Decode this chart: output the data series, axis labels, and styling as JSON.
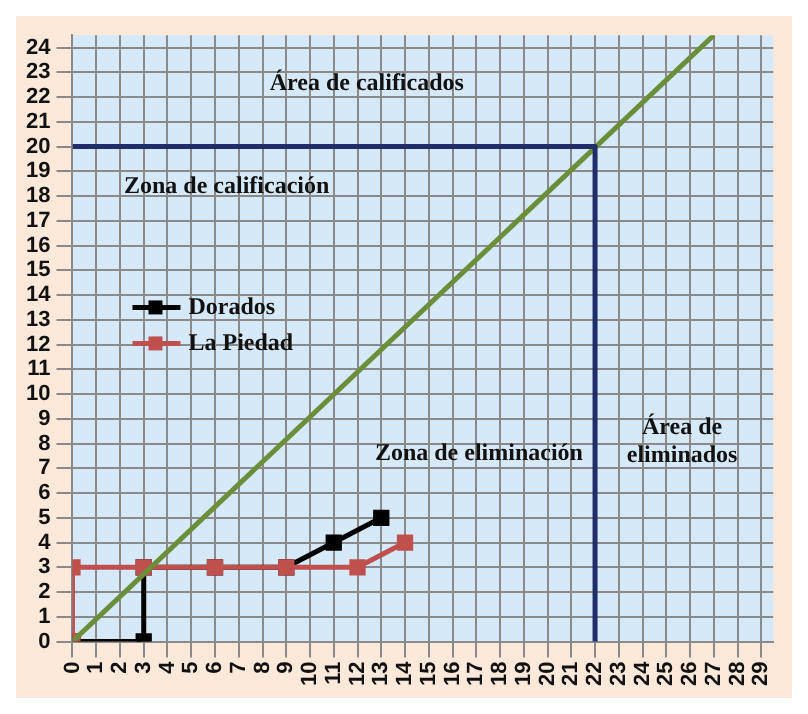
{
  "chart_data": {
    "type": "line",
    "series": [
      {
        "name": "Dorados",
        "color": "#000000",
        "marker": "square",
        "x": [
          0,
          3,
          3,
          6,
          9,
          11,
          13
        ],
        "values": [
          0,
          0,
          3,
          3,
          3,
          4,
          5
        ]
      },
      {
        "name": "La Piedad",
        "color": "#c0504d",
        "marker": "square",
        "x": [
          0,
          0,
          3,
          6,
          9,
          12,
          14
        ],
        "values": [
          0,
          3,
          3,
          3,
          3,
          3,
          4
        ]
      },
      {
        "color": "#6b8e3a",
        "marker": "none",
        "x": [
          0,
          27
        ],
        "values": [
          0,
          24.5
        ]
      },
      {
        "color": "#1f2d6b",
        "marker": "none",
        "x": [
          0,
          22,
          22
        ],
        "values": [
          20,
          20,
          0
        ]
      }
    ],
    "xlim": [
      0,
      29.5
    ],
    "xticks": [
      0,
      1,
      2,
      3,
      4,
      5,
      6,
      7,
      8,
      9,
      10,
      11,
      12,
      13,
      14,
      15,
      16,
      17,
      18,
      19,
      20,
      21,
      22,
      23,
      24,
      25,
      26,
      27,
      28,
      29
    ],
    "ylim": [
      0,
      24.5
    ],
    "yticks": [
      0,
      1,
      2,
      3,
      4,
      5,
      6,
      7,
      8,
      9,
      10,
      11,
      12,
      13,
      14,
      15,
      16,
      17,
      18,
      19,
      20,
      21,
      22,
      23,
      24
    ],
    "grid": true,
    "legend": "center left",
    "line_style": "solid",
    "annotations": [
      "Área de calificados",
      "Zona de calificación",
      "Zona de eliminación",
      "Área de eliminados"
    ]
  }
}
